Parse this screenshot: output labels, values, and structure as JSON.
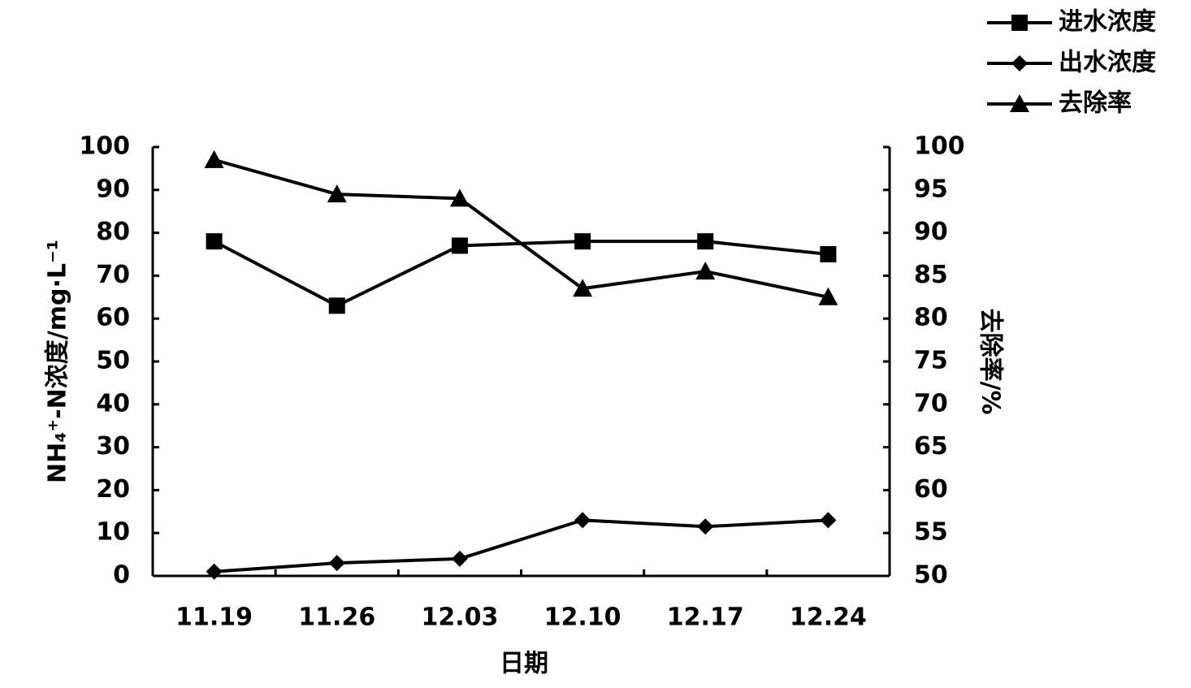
{
  "chart_data": {
    "type": "line",
    "x_label": "日期",
    "y_label": "NH₄⁺-N浓度/mg·L⁻¹",
    "y2_label": "去除率/%",
    "categories": [
      "11.19",
      "11.26",
      "12.03",
      "12.10",
      "12.17",
      "12.24"
    ],
    "series": [
      {
        "name": "进水浓度",
        "color": "#000000",
        "marker": "square",
        "values": [
          78,
          63,
          77,
          78,
          78,
          75
        ]
      },
      {
        "name": "出水浓度",
        "color": "#000000",
        "marker": "diamond",
        "values": [
          1,
          3,
          4,
          13,
          11.5,
          13
        ]
      },
      {
        "name": "去除率",
        "color": "#000000",
        "marker": "triangle",
        "axis": "y2",
        "values": [
          98.5,
          94.5,
          94,
          83.5,
          85.5,
          82.5
        ]
      }
    ],
    "ylim": [
      0,
      100
    ],
    "yticks": [
      0,
      10,
      20,
      30,
      40,
      50,
      60,
      70,
      80,
      90,
      100
    ],
    "y2lim": [
      50,
      100
    ],
    "y2ticks": [
      50,
      55,
      60,
      65,
      70,
      75,
      80,
      85,
      90,
      95,
      100
    ],
    "legend": "top-right"
  }
}
